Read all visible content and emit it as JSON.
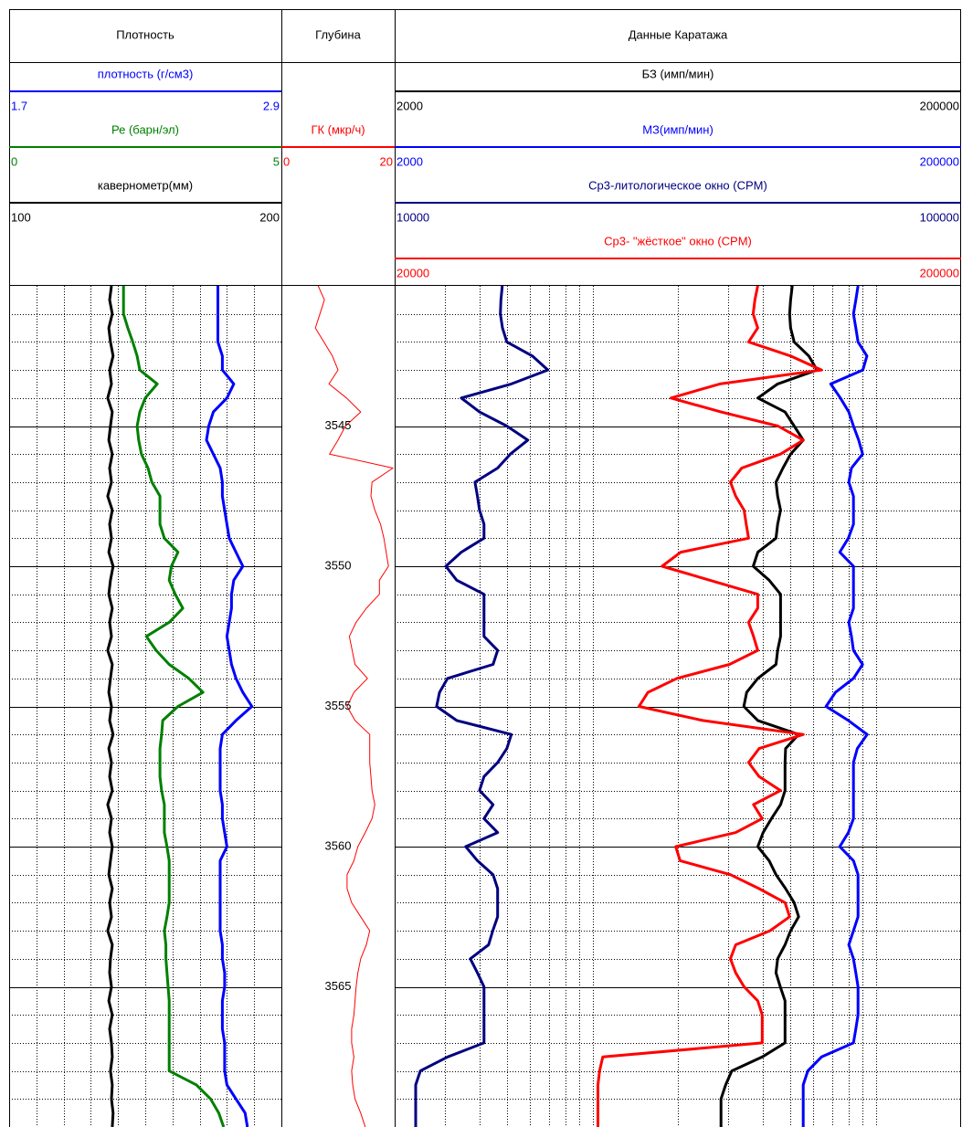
{
  "chart_data": {
    "type": "well-log",
    "x": [
      3540,
      3540.5,
      3541,
      3541.5,
      3542,
      3542.5,
      3543,
      3543.5,
      3544,
      3544.5,
      3545,
      3545.5,
      3546,
      3546.5,
      3547,
      3547.5,
      3548,
      3548.5,
      3549,
      3549.5,
      3550,
      3550.5,
      3551,
      3551.5,
      3552,
      3552.5,
      3553,
      3553.5,
      3554,
      3554.5,
      3555,
      3555.5,
      3556,
      3556.5,
      3557,
      3557.5,
      3558,
      3558.5,
      3559,
      3559.5,
      3560,
      3560.5,
      3561,
      3561.5,
      3562,
      3562.5,
      3563,
      3563.5,
      3564,
      3564.5,
      3565,
      3565.5,
      3566,
      3566.5,
      3567,
      3567.5,
      3568,
      3568.5,
      3569,
      3569.5,
      3570
    ],
    "ylim": [
      3540,
      3570
    ],
    "yticks": [
      3545,
      3550,
      3555,
      3560,
      3565
    ],
    "grid_depths": [
      3541,
      3542,
      3543,
      3544,
      3546,
      3547,
      3548,
      3549,
      3551,
      3552,
      3553,
      3554,
      3556,
      3557,
      3558,
      3559,
      3561,
      3562,
      3563,
      3564,
      3566,
      3567,
      3568,
      3569
    ],
    "tracks": [
      {
        "title": "Плотность",
        "xlim": [
          100,
          200
        ],
        "xticks": [
          110,
          120,
          130,
          140,
          150,
          160,
          170,
          180,
          190
        ],
        "log_scale": false,
        "curves": [
          {
            "name": "плотность (г/см3)",
            "color": "#0000ff",
            "xlim": [
              1.7,
              2.9
            ],
            "values": [
              2.62,
              2.62,
              2.62,
              2.62,
              2.62,
              2.64,
              2.64,
              2.69,
              2.66,
              2.6,
              2.58,
              2.57,
              2.6,
              2.63,
              2.64,
              2.64,
              2.65,
              2.66,
              2.67,
              2.7,
              2.73,
              2.69,
              2.68,
              2.68,
              2.67,
              2.66,
              2.67,
              2.68,
              2.7,
              2.73,
              2.77,
              2.7,
              2.64,
              2.63,
              2.63,
              2.63,
              2.63,
              2.64,
              2.64,
              2.65,
              2.66,
              2.63,
              2.63,
              2.63,
              2.63,
              2.63,
              2.63,
              2.64,
              2.64,
              2.65,
              2.65,
              2.64,
              2.64,
              2.64,
              2.65,
              2.65,
              2.65,
              2.66,
              2.7,
              2.74,
              2.75
            ]
          },
          {
            "name": "Ре (барн/эл)",
            "color": "#008000",
            "xlim": [
              0,
              5
            ],
            "values": [
              2.1,
              2.1,
              2.1,
              2.18,
              2.27,
              2.35,
              2.4,
              2.72,
              2.5,
              2.4,
              2.35,
              2.38,
              2.43,
              2.55,
              2.62,
              2.77,
              2.77,
              2.77,
              2.85,
              3.1,
              2.98,
              2.94,
              3.05,
              3.19,
              2.94,
              2.52,
              2.7,
              2.94,
              3.3,
              3.56,
              3.1,
              2.82,
              2.8,
              2.77,
              2.77,
              2.77,
              2.8,
              2.85,
              2.85,
              2.85,
              2.9,
              2.94,
              2.94,
              2.94,
              2.94,
              2.9,
              2.85,
              2.88,
              2.88,
              2.9,
              2.92,
              2.94,
              2.94,
              2.94,
              2.94,
              2.94,
              2.94,
              3.44,
              3.7,
              3.85,
              3.94
            ]
          },
          {
            "name": "кавернометр(мм)",
            "color": "#000000",
            "xlim": [
              100,
              200
            ],
            "values": [
              137.6,
              136.9,
              137.9,
              136.6,
              137.2,
              138.2,
              136.9,
              137.6,
              136.2,
              137.9,
              137.2,
              136.6,
              137.9,
              136.9,
              137.6,
              136.2,
              137.9,
              136.9,
              137.6,
              136.6,
              138.2,
              137.2,
              136.6,
              137.9,
              136.9,
              137.6,
              136.2,
              137.9,
              137.2,
              136.6,
              137.6,
              136.9,
              138.2,
              136.6,
              137.6,
              136.9,
              137.9,
              136.2,
              137.6,
              136.9,
              137.9,
              137.2,
              136.6,
              137.9,
              136.9,
              137.6,
              136.2,
              137.9,
              137.2,
              136.9,
              137.6,
              136.6,
              137.9,
              136.9,
              137.6,
              137.9,
              137.2,
              137.9,
              137.6,
              138.2,
              137.9
            ]
          }
        ]
      },
      {
        "title": "Глубина",
        "log_scale": false,
        "curves": [
          {
            "name": "ГК (мкр/ч)",
            "color": "#ff0000",
            "xlim": [
              0,
              20
            ],
            "values": [
              6.5,
              7.6,
              6.8,
              6.0,
              7.5,
              9.0,
              10.0,
              8.4,
              11.5,
              14.0,
              11.3,
              10.0,
              8.5,
              19.7,
              16.0,
              15.8,
              16.5,
              17.5,
              18.1,
              18.5,
              18.9,
              17.3,
              17.3,
              15.0,
              13.2,
              12.0,
              12.5,
              13.0,
              15.2,
              12.8,
              11.6,
              13.0,
              15.6,
              15.6,
              15.6,
              15.8,
              16.0,
              16.5,
              16.0,
              14.8,
              13.5,
              12.8,
              11.6,
              11.6,
              12.4,
              14.0,
              15.6,
              15.0,
              14.0,
              13.5,
              13.2,
              13.0,
              12.8,
              12.4,
              12.4,
              12.8,
              12.4,
              12.6,
              13.0,
              14.0,
              14.8
            ]
          }
        ]
      },
      {
        "title": "Данные Каратажа",
        "xlim": [
          2000,
          200000
        ],
        "xticks": [
          3000,
          4000,
          5000,
          6000,
          7000,
          8000,
          9000,
          10000,
          20000,
          30000,
          40000,
          50000,
          60000,
          70000,
          80000,
          90000,
          100000
        ],
        "log_scale": true,
        "curves": [
          {
            "name": "БЗ (имп/мин)",
            "color": "#000000",
            "xlim": [
              2000,
              200000
            ],
            "values": [
              50700,
              50000,
              49600,
              50000,
              51500,
              58000,
              62000,
              45000,
              38300,
              47800,
              51500,
              55400,
              50000,
              47000,
              44400,
              45000,
              46100,
              45000,
              44400,
              38300,
              36900,
              42000,
              46100,
              46100,
              46100,
              46100,
              45000,
              44400,
              38300,
              35000,
              34200,
              38300,
              53400,
              48000,
              47800,
              47800,
              47800,
              46100,
              42800,
              40000,
              38300,
              42000,
              44400,
              48000,
              51500,
              53400,
              50000,
              47800,
              45000,
              44400,
              46000,
              47800,
              47800,
              47800,
              47800,
              39700,
              31000,
              29500,
              28400,
              28400,
              28400
            ]
          },
          {
            "name": "МЗ(имп/мин)",
            "color": "#0000ff",
            "xlim": [
              2000,
              200000
            ],
            "values": [
              86500,
              85000,
              83400,
              85000,
              86500,
              93000,
              90000,
              69300,
              75000,
              80300,
              83400,
              87000,
              89800,
              82000,
              80300,
              83400,
              83400,
              83400,
              80000,
              74600,
              83400,
              83400,
              83400,
              83400,
              80300,
              82000,
              83400,
              89800,
              83400,
              72000,
              66700,
              80000,
              93200,
              86000,
              83400,
              83400,
              83400,
              83400,
              83400,
              80000,
              74600,
              83400,
              86500,
              86500,
              86500,
              86500,
              83400,
              80300,
              83400,
              85000,
              86500,
              86500,
              86500,
              85000,
              83400,
              64300,
              57500,
              55400,
              55400,
              55400,
              55400
            ]
          },
          {
            "name": "Ср3-литологическое окно (CPM)",
            "color": "#000080",
            "xlim": [
              10000,
              100000
            ],
            "values": [
              15490,
              15400,
              15370,
              15500,
              15780,
              17500,
              18640,
              16070,
              13110,
              14120,
              15780,
              17180,
              16000,
              15200,
              13860,
              14000,
              14120,
              14380,
              14380,
              13110,
              12310,
              12870,
              14380,
              14380,
              14380,
              14380,
              15200,
              14920,
              12400,
              12000,
              11860,
              12870,
              16070,
              15780,
              15200,
              14380,
              14120,
              14920,
              14380,
              15200,
              13350,
              14000,
              14920,
              15200,
              15200,
              15200,
              14900,
              14650,
              13600,
              14000,
              14380,
              14380,
              14380,
              14380,
              14380,
              12400,
              11100,
              10890,
              10890,
              10890,
              10890
            ]
          },
          {
            "name": "Ср3- \"жёсткое\" окно (CPM)",
            "color": "#ff0000",
            "xlim": [
              20000,
              200000
            ],
            "values": [
              87500,
              86500,
              85900,
              87500,
              84300,
              100000,
              113400,
              75000,
              61500,
              75400,
              95000,
              105300,
              96000,
              82000,
              78300,
              80000,
              82800,
              83500,
              84300,
              64000,
              59300,
              72000,
              87500,
              87500,
              84300,
              86000,
              87500,
              78000,
              63000,
              56000,
              54000,
              70000,
              105300,
              88000,
              84300,
              88000,
              96000,
              86000,
              89100,
              80000,
              62700,
              63800,
              78300,
              88000,
              97800,
              99600,
              92000,
              80000,
              78300,
              80000,
              82800,
              87500,
              89100,
              89100,
              89100,
              46600,
              46000,
              45700,
              45700,
              45700,
              45700
            ]
          }
        ]
      }
    ]
  }
}
